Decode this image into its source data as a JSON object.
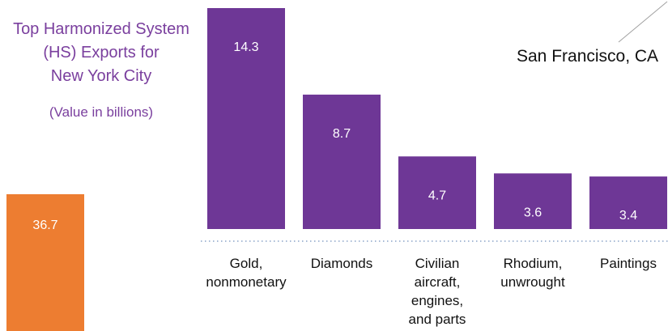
{
  "chart_data": {
    "type": "bar",
    "title_lines": [
      "Top Harmonized System",
      "(HS) Exports for",
      "New York City"
    ],
    "subtitle": "(Value in billions)",
    "side_label": "San Francisco, CA",
    "total": {
      "value": 36.7,
      "label": "36.7",
      "color": "#ed7d31"
    },
    "categories": [
      "Gold, nonmonetary",
      "Diamonds",
      "Civilian aircraft, engines, and parts",
      "Rhodium, unwrought",
      "Paintings"
    ],
    "category_lines": [
      [
        "Gold,",
        "nonmonetary"
      ],
      [
        "Diamonds"
      ],
      [
        "Civilian",
        "aircraft,",
        "engines,",
        "and parts"
      ],
      [
        "Rhodium,",
        "unwrought"
      ],
      [
        "Paintings"
      ]
    ],
    "values": [
      14.3,
      8.7,
      4.7,
      3.6,
      3.4
    ],
    "value_labels": [
      "14.3",
      "8.7",
      "4.7",
      "3.6",
      "3.4"
    ],
    "bar_color": "#6e3796",
    "title_color": "#7a3f9e",
    "baseline_color": "#8aa4c8"
  }
}
